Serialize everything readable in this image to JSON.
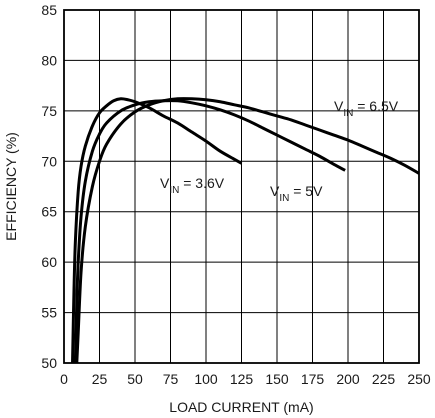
{
  "chart_data": {
    "type": "line",
    "title": "",
    "xlabel": "LOAD CURRENT (mA)",
    "ylabel": "EFFICIENCY (%)",
    "xlim": [
      0,
      250
    ],
    "ylim": [
      50,
      85
    ],
    "grid": true,
    "x_ticks": [
      0,
      25,
      50,
      75,
      100,
      125,
      150,
      175,
      200,
      225,
      250
    ],
    "y_ticks": [
      50,
      55,
      60,
      65,
      70,
      75,
      80,
      85
    ],
    "series": [
      {
        "name": "VIN = 3.6V",
        "label_main": "V",
        "label_sub": "IN",
        "label_rest": " = 3.6V",
        "x": [
          6,
          7,
          8,
          10,
          12,
          15,
          20,
          25,
          30,
          35,
          40,
          45,
          50,
          60,
          70,
          80,
          90,
          100,
          110,
          120,
          125
        ],
        "y": [
          50,
          57,
          62,
          67,
          69.5,
          71.5,
          73.5,
          74.8,
          75.5,
          76,
          76.2,
          76.1,
          75.9,
          75.3,
          74.5,
          73.8,
          72.9,
          72,
          71,
          70.2,
          69.8
        ]
      },
      {
        "name": "VIN = 5V",
        "label_main": "V",
        "label_sub": "IN",
        "label_rest": " = 5V",
        "x": [
          8,
          9,
          10,
          12,
          15,
          20,
          25,
          30,
          40,
          50,
          60,
          70,
          80,
          90,
          100,
          110,
          120,
          130,
          140,
          150,
          160,
          170,
          180,
          190,
          198
        ],
        "y": [
          50,
          56,
          60,
          64.5,
          68,
          71,
          72.7,
          73.8,
          75,
          75.6,
          75.9,
          76,
          76,
          75.8,
          75.5,
          75.1,
          74.6,
          74,
          73.3,
          72.6,
          71.9,
          71.2,
          70.5,
          69.7,
          69.1
        ]
      },
      {
        "name": "VIN = 6.5V",
        "label_main": "V",
        "label_sub": "IN",
        "label_rest": " = 6.5V",
        "x": [
          9,
          10,
          12,
          15,
          20,
          25,
          30,
          40,
          50,
          60,
          70,
          80,
          90,
          100,
          110,
          120,
          130,
          140,
          150,
          160,
          170,
          180,
          190,
          200,
          210,
          220,
          230,
          240,
          250
        ],
        "y": [
          50,
          53,
          59,
          63.5,
          67.5,
          70,
          71.7,
          73.7,
          74.9,
          75.6,
          76,
          76.2,
          76.2,
          76.1,
          75.9,
          75.6,
          75.3,
          74.9,
          74.5,
          74.1,
          73.6,
          73.1,
          72.6,
          72.1,
          71.5,
          70.9,
          70.3,
          69.6,
          68.8
        ]
      }
    ]
  }
}
